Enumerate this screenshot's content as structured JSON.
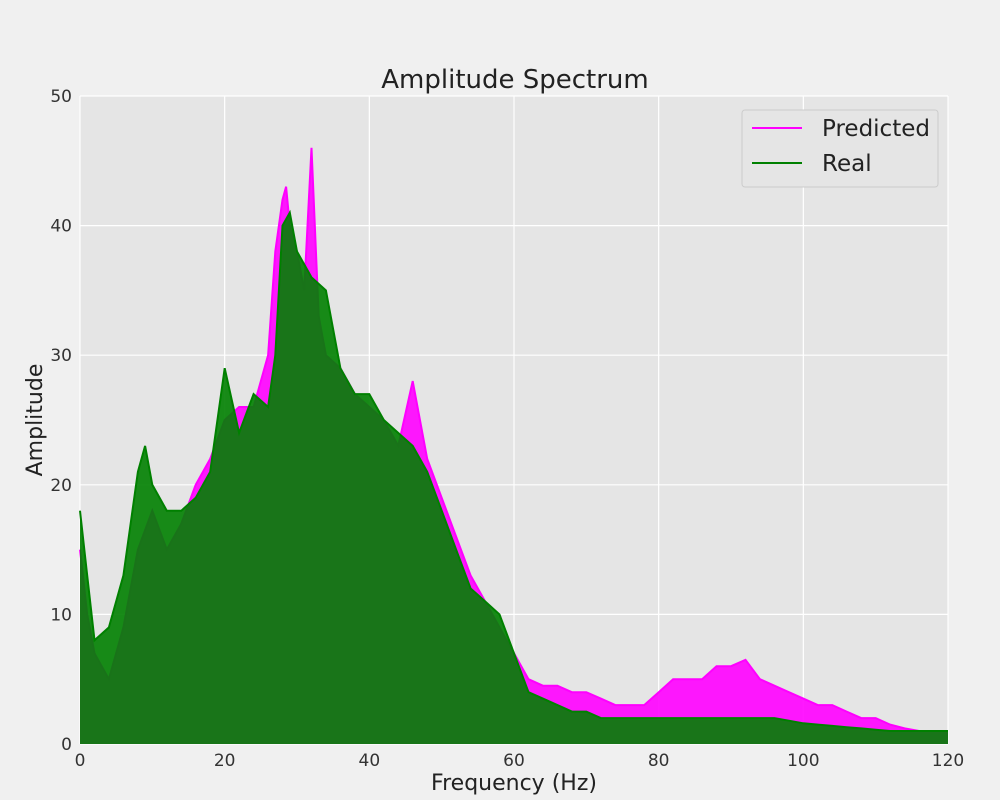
{
  "chart_data": {
    "type": "line",
    "title": "Amplitude Spectrum",
    "xlabel": "Frequency (Hz)",
    "ylabel": "Amplitude",
    "xlim": [
      0,
      120
    ],
    "ylim": [
      0,
      50
    ],
    "xticks": [
      0,
      20,
      40,
      60,
      80,
      100,
      120
    ],
    "yticks": [
      0,
      10,
      20,
      30,
      40,
      50
    ],
    "grid": true,
    "legend_position": "top-right",
    "series": [
      {
        "name": "Predicted",
        "color": "#ff00ff",
        "x": [
          0,
          1,
          2,
          4,
          6,
          8,
          10,
          12,
          14,
          16,
          18,
          20,
          22,
          24,
          26,
          27,
          28,
          28.5,
          29,
          30,
          31,
          32,
          33,
          34,
          36,
          38,
          40,
          42,
          44,
          46,
          48,
          50,
          52,
          54,
          56,
          58,
          60,
          62,
          64,
          66,
          68,
          70,
          72,
          74,
          76,
          78,
          80,
          82,
          84,
          86,
          88,
          90,
          92,
          94,
          96,
          98,
          100,
          102,
          104,
          106,
          108,
          110,
          112,
          114,
          116,
          118,
          120
        ],
        "y": [
          15,
          10,
          7,
          5,
          9,
          15,
          18,
          15,
          17,
          20,
          22,
          25,
          26,
          26,
          30,
          38,
          42,
          43,
          40,
          38,
          35,
          46,
          33,
          30,
          29,
          27,
          26,
          25,
          23,
          28,
          22,
          19,
          16,
          13,
          11,
          9,
          7,
          5,
          4.5,
          4.5,
          4,
          4,
          3.5,
          3,
          3,
          3,
          4,
          5,
          5,
          5,
          6,
          6,
          6.5,
          5,
          4.5,
          4,
          3.5,
          3,
          3,
          2.5,
          2,
          2,
          1.5,
          1.2,
          1,
          1,
          1
        ]
      },
      {
        "name": "Real",
        "color": "#008000",
        "x": [
          0,
          1,
          2,
          4,
          6,
          8,
          9,
          10,
          12,
          14,
          16,
          18,
          20,
          22,
          24,
          26,
          27,
          28,
          29,
          30,
          32,
          34,
          36,
          38,
          40,
          42,
          44,
          46,
          48,
          50,
          52,
          54,
          56,
          58,
          60,
          62,
          64,
          66,
          68,
          70,
          72,
          74,
          76,
          78,
          80,
          82,
          84,
          86,
          88,
          90,
          92,
          94,
          96,
          98,
          100,
          102,
          104,
          106,
          108,
          110,
          112,
          114,
          116,
          118,
          120
        ],
        "y": [
          18,
          13,
          8,
          9,
          13,
          21,
          23,
          20,
          18,
          18,
          19,
          21,
          29,
          24,
          27,
          26,
          30,
          40,
          41,
          38,
          36,
          35,
          29,
          27,
          27,
          25,
          24,
          23,
          21,
          18,
          15,
          12,
          11,
          10,
          7,
          4,
          3.5,
          3,
          2.5,
          2.5,
          2,
          2,
          2,
          2,
          2,
          2,
          2,
          2,
          2,
          2,
          2,
          2,
          2,
          1.8,
          1.6,
          1.5,
          1.4,
          1.3,
          1.2,
          1.1,
          1,
          1,
          1,
          1,
          1
        ]
      }
    ]
  }
}
